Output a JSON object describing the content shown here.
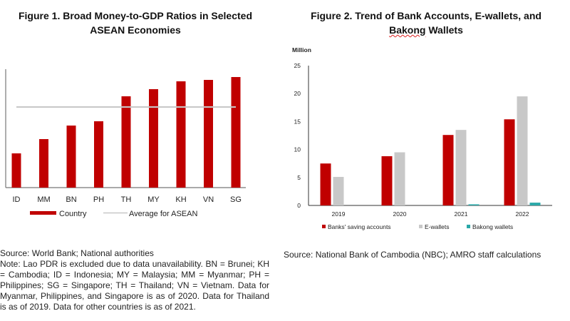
{
  "figure1": {
    "title_line1": "Figure 1. Broad Money-to-GDP Ratios in Selected",
    "title_line2": "ASEAN Economies",
    "source": "Source: World Bank; National authorities",
    "note": "Note: Lao PDR is excluded due to data unavailability. BN = Brunei; KH = Cambodia; ID = Indonesia; MY = Malaysia; MM = Myanmar; PH = Philippines; SG = Singapore; TH = Thailand; VN = Vietnam. Data for Myanmar, Philippines, and Singapore is as of 2020. Data for Thailand is as of 2019. Data for other countries is as of 2021."
  },
  "figure2": {
    "title_line1": "Figure 2. Trend of Bank Accounts, E-wallets, and",
    "title_line2a": "Bakong",
    "title_line2b": " Wallets",
    "source": "Source: National Bank of Cambodia (NBC); AMRO staff calculations"
  },
  "colors": {
    "red": "#c00000",
    "grey": "#c8c8c8",
    "teal": "#2aa8a8",
    "avg_line": "#c8c8c8"
  },
  "chart_data": [
    {
      "type": "bar",
      "categories": [
        "ID",
        "MM",
        "BN",
        "PH",
        "TH",
        "MY",
        "KH",
        "VN",
        "SG"
      ],
      "series": [
        {
          "name": "Country",
          "values": [
            48,
            68,
            87,
            93,
            128,
            138,
            149,
            151,
            155
          ]
        }
      ],
      "reference_line": {
        "name": "Average for ASEAN",
        "value": 113
      },
      "ylim": [
        0,
        166
      ],
      "y_tick_labels_shown": false,
      "grid": false,
      "legend": "bottom"
    },
    {
      "type": "bar",
      "ylabel": "Million",
      "categories": [
        "2019",
        "2020",
        "2021",
        "2022"
      ],
      "yticks": [
        0,
        5,
        10,
        15,
        20,
        25
      ],
      "ylim": [
        0,
        25
      ],
      "series": [
        {
          "name": "Banks' saving accounts",
          "values": [
            7.5,
            8.8,
            12.6,
            15.4
          ]
        },
        {
          "name": "E-wallets",
          "values": [
            5.1,
            9.5,
            13.5,
            19.5
          ]
        },
        {
          "name": "Bakong wallets",
          "values": [
            0,
            0,
            0.2,
            0.5
          ]
        }
      ],
      "grid": false,
      "legend": "bottom"
    }
  ]
}
